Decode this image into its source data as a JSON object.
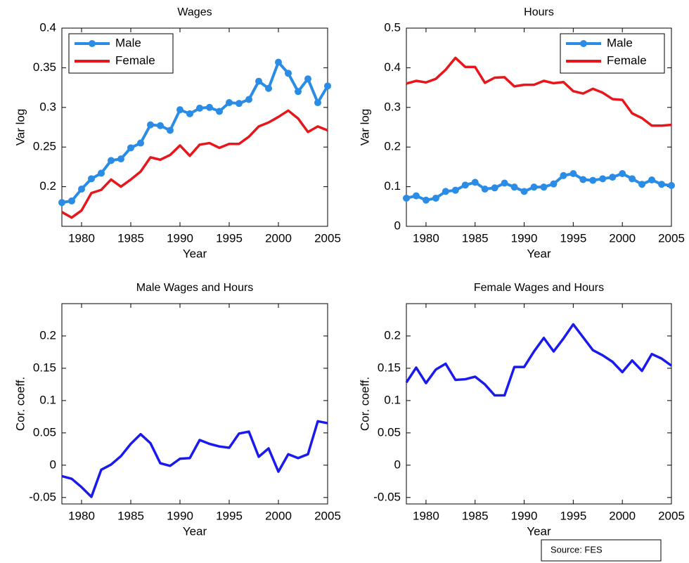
{
  "chart_data": [
    {
      "type": "line",
      "title": "Wages",
      "xlabel": "Year",
      "ylabel": "Var log",
      "x": [
        1978,
        1979,
        1980,
        1981,
        1982,
        1983,
        1984,
        1985,
        1986,
        1987,
        1988,
        1989,
        1990,
        1991,
        1992,
        1993,
        1994,
        1995,
        1996,
        1997,
        1998,
        1999,
        2000,
        2001,
        2002,
        2003,
        2004,
        2005
      ],
      "xlim": [
        1978,
        2005
      ],
      "xticks": [
        1980,
        1985,
        1990,
        1995,
        2000,
        2005
      ],
      "ylim": [
        0.15,
        0.4
      ],
      "yticks": [
        0.2,
        0.25,
        0.3,
        0.35,
        0.4
      ],
      "legend": "upper left",
      "series": [
        {
          "name": "Male",
          "color": "#2b8ce6",
          "marker": true,
          "values": [
            0.18,
            0.182,
            0.197,
            0.21,
            0.217,
            0.233,
            0.235,
            0.249,
            0.255,
            0.278,
            0.277,
            0.271,
            0.297,
            0.292,
            0.299,
            0.3,
            0.295,
            0.306,
            0.305,
            0.31,
            0.333,
            0.324,
            0.357,
            0.343,
            0.32,
            0.336,
            0.306,
            0.327
          ]
        },
        {
          "name": "Female",
          "color": "#e8161b",
          "marker": false,
          "values": [
            0.168,
            0.161,
            0.17,
            0.192,
            0.196,
            0.209,
            0.2,
            0.209,
            0.219,
            0.237,
            0.234,
            0.24,
            0.252,
            0.239,
            0.253,
            0.255,
            0.249,
            0.254,
            0.254,
            0.263,
            0.276,
            0.281,
            0.288,
            0.296,
            0.286,
            0.269,
            0.276,
            0.271
          ]
        }
      ]
    },
    {
      "type": "line",
      "title": "Hours",
      "xlabel": "Year",
      "ylabel": "Var log",
      "x": [
        1978,
        1979,
        1980,
        1981,
        1982,
        1983,
        1984,
        1985,
        1986,
        1987,
        1988,
        1989,
        1990,
        1991,
        1992,
        1993,
        1994,
        1995,
        1996,
        1997,
        1998,
        1999,
        2000,
        2001,
        2002,
        2003,
        2004,
        2005
      ],
      "xlim": [
        1978,
        2005
      ],
      "xticks": [
        1980,
        1985,
        1990,
        1995,
        2000,
        2005
      ],
      "ylim": [
        0,
        0.5
      ],
      "yticks": [
        0,
        0.1,
        0.2,
        0.3,
        0.4,
        0.5
      ],
      "legend": "upper right",
      "series": [
        {
          "name": "Male",
          "color": "#2b8ce6",
          "marker": true,
          "values": [
            0.071,
            0.077,
            0.066,
            0.071,
            0.088,
            0.091,
            0.104,
            0.111,
            0.094,
            0.097,
            0.109,
            0.099,
            0.088,
            0.099,
            0.099,
            0.107,
            0.128,
            0.133,
            0.118,
            0.116,
            0.12,
            0.124,
            0.133,
            0.12,
            0.106,
            0.117,
            0.106,
            0.103
          ]
        },
        {
          "name": "Female",
          "color": "#e8161b",
          "marker": false,
          "values": [
            0.36,
            0.367,
            0.363,
            0.372,
            0.395,
            0.425,
            0.402,
            0.402,
            0.362,
            0.375,
            0.376,
            0.353,
            0.357,
            0.357,
            0.367,
            0.361,
            0.364,
            0.341,
            0.335,
            0.347,
            0.337,
            0.321,
            0.319,
            0.285,
            0.273,
            0.254,
            0.254,
            0.256
          ]
        }
      ]
    },
    {
      "type": "line",
      "title": "Male Wages and Hours",
      "xlabel": "Year",
      "ylabel": "Cor. coeff.",
      "x": [
        1978,
        1979,
        1980,
        1981,
        1982,
        1983,
        1984,
        1985,
        1986,
        1987,
        1988,
        1989,
        1990,
        1991,
        1992,
        1993,
        1994,
        1995,
        1996,
        1997,
        1998,
        1999,
        2000,
        2001,
        2002,
        2003,
        2004,
        2005
      ],
      "xlim": [
        1978,
        2005
      ],
      "xticks": [
        1980,
        1985,
        1990,
        1995,
        2000,
        2005
      ],
      "ylim": [
        -0.06,
        0.25
      ],
      "yticks": [
        -0.05,
        0,
        0.05,
        0.1,
        0.15,
        0.2
      ],
      "series": [
        {
          "color": "#1a1aee",
          "marker": false,
          "values": [
            -0.017,
            -0.021,
            -0.034,
            -0.049,
            -0.007,
            0.001,
            0.014,
            0.033,
            0.048,
            0.034,
            0.003,
            -0.001,
            0.01,
            0.011,
            0.039,
            0.033,
            0.029,
            0.027,
            0.049,
            0.052,
            0.013,
            0.026,
            -0.01,
            0.017,
            0.011,
            0.017,
            0.068,
            0.065
          ]
        }
      ]
    },
    {
      "type": "line",
      "title": "Female Wages and Hours",
      "xlabel": "Year",
      "ylabel": "Cor. coeff.",
      "x": [
        1978,
        1979,
        1980,
        1981,
        1982,
        1983,
        1984,
        1985,
        1986,
        1987,
        1988,
        1989,
        1990,
        1991,
        1992,
        1993,
        1994,
        1995,
        1996,
        1997,
        1998,
        1999,
        2000,
        2001,
        2002,
        2003,
        2004,
        2005
      ],
      "xlim": [
        1978,
        2005
      ],
      "xticks": [
        1980,
        1985,
        1990,
        1995,
        2000,
        2005
      ],
      "ylim": [
        -0.06,
        0.25
      ],
      "yticks": [
        -0.05,
        0,
        0.05,
        0.1,
        0.15,
        0.2
      ],
      "annotation": "Source: FES",
      "series": [
        {
          "color": "#1a1aee",
          "marker": false,
          "values": [
            0.128,
            0.151,
            0.127,
            0.148,
            0.157,
            0.132,
            0.133,
            0.137,
            0.125,
            0.108,
            0.108,
            0.152,
            0.152,
            0.176,
            0.197,
            0.176,
            0.196,
            0.218,
            0.198,
            0.178,
            0.17,
            0.16,
            0.144,
            0.162,
            0.146,
            0.172,
            0.165,
            0.154
          ]
        }
      ]
    }
  ]
}
